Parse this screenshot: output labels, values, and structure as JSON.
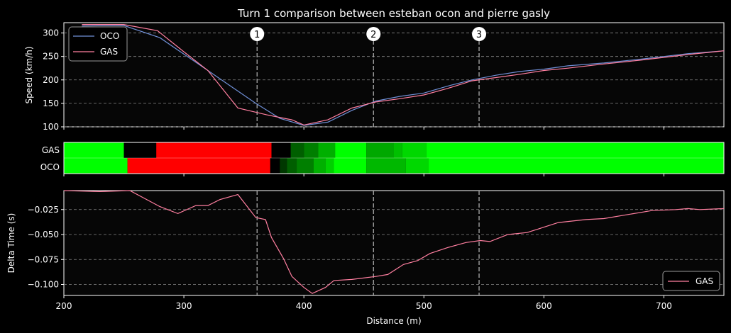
{
  "chart_data": {
    "type": "line",
    "title": "Turn 1 comparison between esteban ocon and pierre gasly",
    "xlabel": "Distance (m)",
    "xlim": [
      200,
      750
    ],
    "xticks": [
      200,
      300,
      400,
      500,
      600,
      700
    ],
    "markers": [
      {
        "label": "1",
        "x": 361
      },
      {
        "label": "2",
        "x": 458
      },
      {
        "label": "3",
        "x": 546
      }
    ],
    "speed": {
      "ylabel": "Speed (km/h)",
      "ylim": [
        100,
        322
      ],
      "yticks": [
        100,
        150,
        200,
        250,
        300
      ],
      "legend_position": "top-left",
      "series": [
        {
          "name": "OCO",
          "color": "#6f8fd6",
          "x": [
            215,
            250,
            280,
            300,
            320,
            340,
            360,
            380,
            400,
            420,
            440,
            460,
            480,
            500,
            520,
            540,
            560,
            580,
            600,
            620,
            650,
            680,
            700,
            720,
            750
          ],
          "y": [
            315,
            316,
            290,
            255,
            220,
            185,
            150,
            118,
            103,
            110,
            135,
            155,
            165,
            172,
            187,
            200,
            210,
            218,
            223,
            230,
            236,
            244,
            250,
            256,
            262
          ]
        },
        {
          "name": "GAS",
          "color": "#ff7fa0",
          "x": [
            215,
            250,
            278,
            300,
            320,
            345,
            370,
            390,
            400,
            420,
            440,
            460,
            480,
            500,
            520,
            540,
            560,
            580,
            600,
            620,
            650,
            680,
            700,
            720,
            750
          ],
          "y": [
            318,
            318,
            305,
            260,
            220,
            140,
            125,
            115,
            104,
            115,
            140,
            153,
            160,
            168,
            182,
            198,
            205,
            212,
            220,
            225,
            234,
            242,
            248,
            254,
            262
          ]
        }
      ]
    },
    "gear_map": {
      "rows": [
        {
          "name": "GAS",
          "segments": [
            {
              "start": 200,
              "end": 250,
              "color": "#00ff00"
            },
            {
              "start": 250,
              "end": 277,
              "color": "#000000"
            },
            {
              "start": 277,
              "end": 373,
              "color": "#ff0000"
            },
            {
              "start": 373,
              "end": 389,
              "color": "#000000"
            },
            {
              "start": 389,
              "end": 400,
              "color": "#005f00"
            },
            {
              "start": 400,
              "end": 412,
              "color": "#007f00"
            },
            {
              "start": 412,
              "end": 426,
              "color": "#00b000"
            },
            {
              "start": 426,
              "end": 452,
              "color": "#00ff00"
            },
            {
              "start": 452,
              "end": 475,
              "color": "#00a800"
            },
            {
              "start": 475,
              "end": 482,
              "color": "#00c000"
            },
            {
              "start": 482,
              "end": 502,
              "color": "#00d800"
            },
            {
              "start": 502,
              "end": 750,
              "color": "#00ff00"
            }
          ]
        },
        {
          "name": "OCO",
          "segments": [
            {
              "start": 200,
              "end": 253,
              "color": "#00ff00"
            },
            {
              "start": 253,
              "end": 372,
              "color": "#ff0000"
            },
            {
              "start": 372,
              "end": 380,
              "color": "#000000"
            },
            {
              "start": 380,
              "end": 386,
              "color": "#003800"
            },
            {
              "start": 386,
              "end": 394,
              "color": "#005f00"
            },
            {
              "start": 394,
              "end": 408,
              "color": "#007f00"
            },
            {
              "start": 408,
              "end": 418,
              "color": "#00b000"
            },
            {
              "start": 418,
              "end": 425,
              "color": "#00d000"
            },
            {
              "start": 425,
              "end": 452,
              "color": "#00ff00"
            },
            {
              "start": 452,
              "end": 485,
              "color": "#00b800"
            },
            {
              "start": 485,
              "end": 504,
              "color": "#00d800"
            },
            {
              "start": 504,
              "end": 750,
              "color": "#00ff00"
            }
          ]
        }
      ]
    },
    "delta": {
      "ylabel": "Delta Time (s)",
      "ylim": [
        -0.111,
        -0.006
      ],
      "yticks": [
        -0.025,
        -0.05,
        -0.075,
        -0.1
      ],
      "ytick_labels": [
        "−0.025",
        "−0.050",
        "−0.075",
        "−0.100"
      ],
      "legend_position": "bottom-right",
      "series": [
        {
          "name": "GAS",
          "color": "#ff7fa0",
          "x": [
            200,
            230,
            255,
            280,
            295,
            310,
            320,
            330,
            345,
            360,
            368,
            373,
            383,
            390,
            400,
            407,
            418,
            425,
            440,
            460,
            470,
            483,
            495,
            505,
            520,
            535,
            547,
            555,
            570,
            586,
            612,
            635,
            650,
            670,
            690,
            710,
            720,
            730,
            750
          ],
          "y": [
            -0.006,
            -0.007,
            -0.006,
            -0.022,
            -0.029,
            -0.021,
            -0.021,
            -0.015,
            -0.01,
            -0.033,
            -0.035,
            -0.053,
            -0.074,
            -0.092,
            -0.103,
            -0.109,
            -0.103,
            -0.096,
            -0.095,
            -0.092,
            -0.09,
            -0.08,
            -0.076,
            -0.069,
            -0.063,
            -0.058,
            -0.056,
            -0.057,
            -0.05,
            -0.048,
            -0.038,
            -0.035,
            -0.034,
            -0.03,
            -0.026,
            -0.025,
            -0.024,
            -0.025,
            -0.024
          ]
        }
      ]
    }
  }
}
